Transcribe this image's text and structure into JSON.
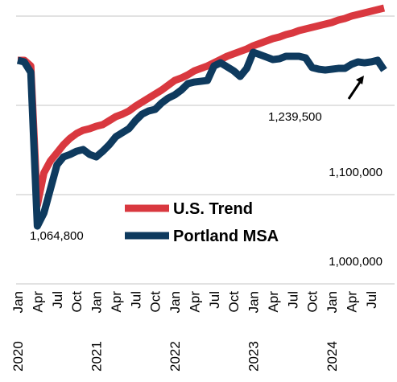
{
  "chart_data": {
    "type": "line",
    "categories": [
      "Jan",
      null,
      null,
      "Apr",
      null,
      null,
      "Jul",
      null,
      null,
      "Oct",
      null,
      null,
      "Jan",
      null,
      null,
      "Apr",
      null,
      null,
      "Jul",
      null,
      null,
      "Oct",
      null,
      null,
      "Jan",
      null,
      null,
      "Apr",
      null,
      null,
      "Jul",
      null,
      null,
      "Oct",
      null,
      null,
      "Jan",
      null,
      null,
      "Apr",
      null,
      null,
      "Jul",
      null,
      null,
      "Oct",
      null,
      null,
      "Jan",
      null,
      null,
      "Apr",
      null,
      null,
      "Jul",
      null,
      null
    ],
    "years": [
      "2020",
      "2021",
      "2022",
      "2023",
      "2024"
    ],
    "series": [
      {
        "name": "U.S. Trend",
        "color": "#d9383f",
        "values": [
          1250500,
          1250500,
          1244100,
          1088300,
          1124300,
          1137800,
          1146800,
          1155900,
          1163100,
          1168500,
          1172100,
          1173900,
          1176600,
          1178400,
          1182900,
          1187400,
          1190100,
          1193700,
          1199100,
          1203600,
          1208100,
          1212600,
          1217100,
          1222500,
          1227900,
          1230600,
          1234200,
          1238700,
          1241400,
          1244100,
          1247700,
          1251300,
          1255000,
          1257700,
          1260400,
          1263100,
          1266700,
          1269400,
          1272100,
          1274800,
          1276600,
          1279300,
          1281100,
          1283800,
          1285600,
          1287400,
          1289200,
          1291000,
          1292800,
          1295500,
          1297300,
          1300000,
          1301800,
          1303600,
          1305400,
          1307200,
          1309000
        ]
      },
      {
        "name": "Portland MSA",
        "color": "#0e3a5e",
        "values": [
          1250500,
          1248700,
          1236900,
          1064800,
          1079300,
          1106300,
          1133300,
          1142300,
          1145000,
          1148600,
          1150500,
          1145000,
          1142300,
          1148600,
          1155900,
          1164900,
          1169400,
          1173900,
          1182900,
          1190100,
          1193700,
          1195500,
          1202700,
          1208100,
          1211700,
          1217100,
          1224300,
          1226100,
          1227000,
          1227900,
          1244100,
          1247700,
          1243200,
          1238700,
          1232400,
          1241400,
          1259500,
          1256800,
          1254100,
          1251300,
          1252200,
          1255000,
          1255000,
          1255000,
          1253200,
          1242300,
          1240500,
          1239600,
          1240500,
          1241400,
          1241400,
          1245900,
          1248700,
          1247700,
          1248700,
          1250500,
          1239500
        ]
      }
    ],
    "ylim": [
      1000000,
      1300000
    ],
    "yticks": [
      {
        "value": 1000000,
        "label": "1,000,000"
      },
      {
        "value": 1100000,
        "label": "1,100,000"
      },
      {
        "value": 1200000,
        "label": null
      },
      {
        "value": 1300000,
        "label": null
      }
    ],
    "grid": true,
    "annotations": [
      "1,064,800",
      "1,239,500"
    ]
  }
}
